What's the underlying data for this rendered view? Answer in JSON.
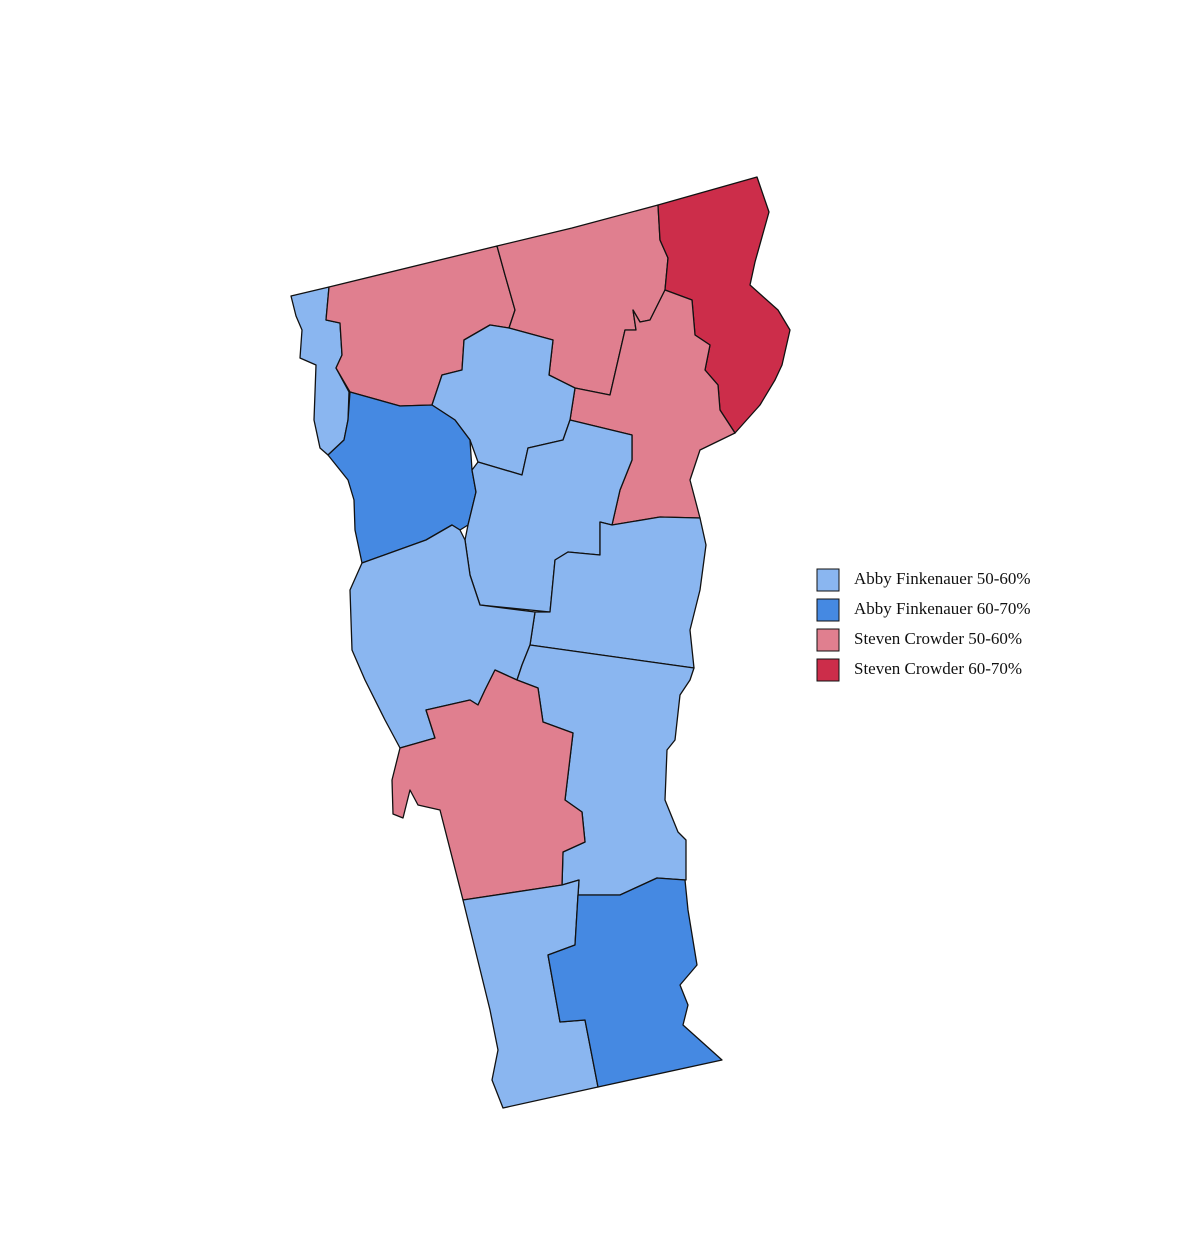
{
  "legend": [
    {
      "label": "Abby Finkenauer 50-60%",
      "color": "#8ab6f0"
    },
    {
      "label": "Abby Finkenauer 60-70%",
      "color": "#4589e2"
    },
    {
      "label": "Steven Crowder 50-60%",
      "color": "#e07f8f"
    },
    {
      "label": "Steven Crowder 60-70%",
      "color": "#cc2d4a"
    }
  ]
}
